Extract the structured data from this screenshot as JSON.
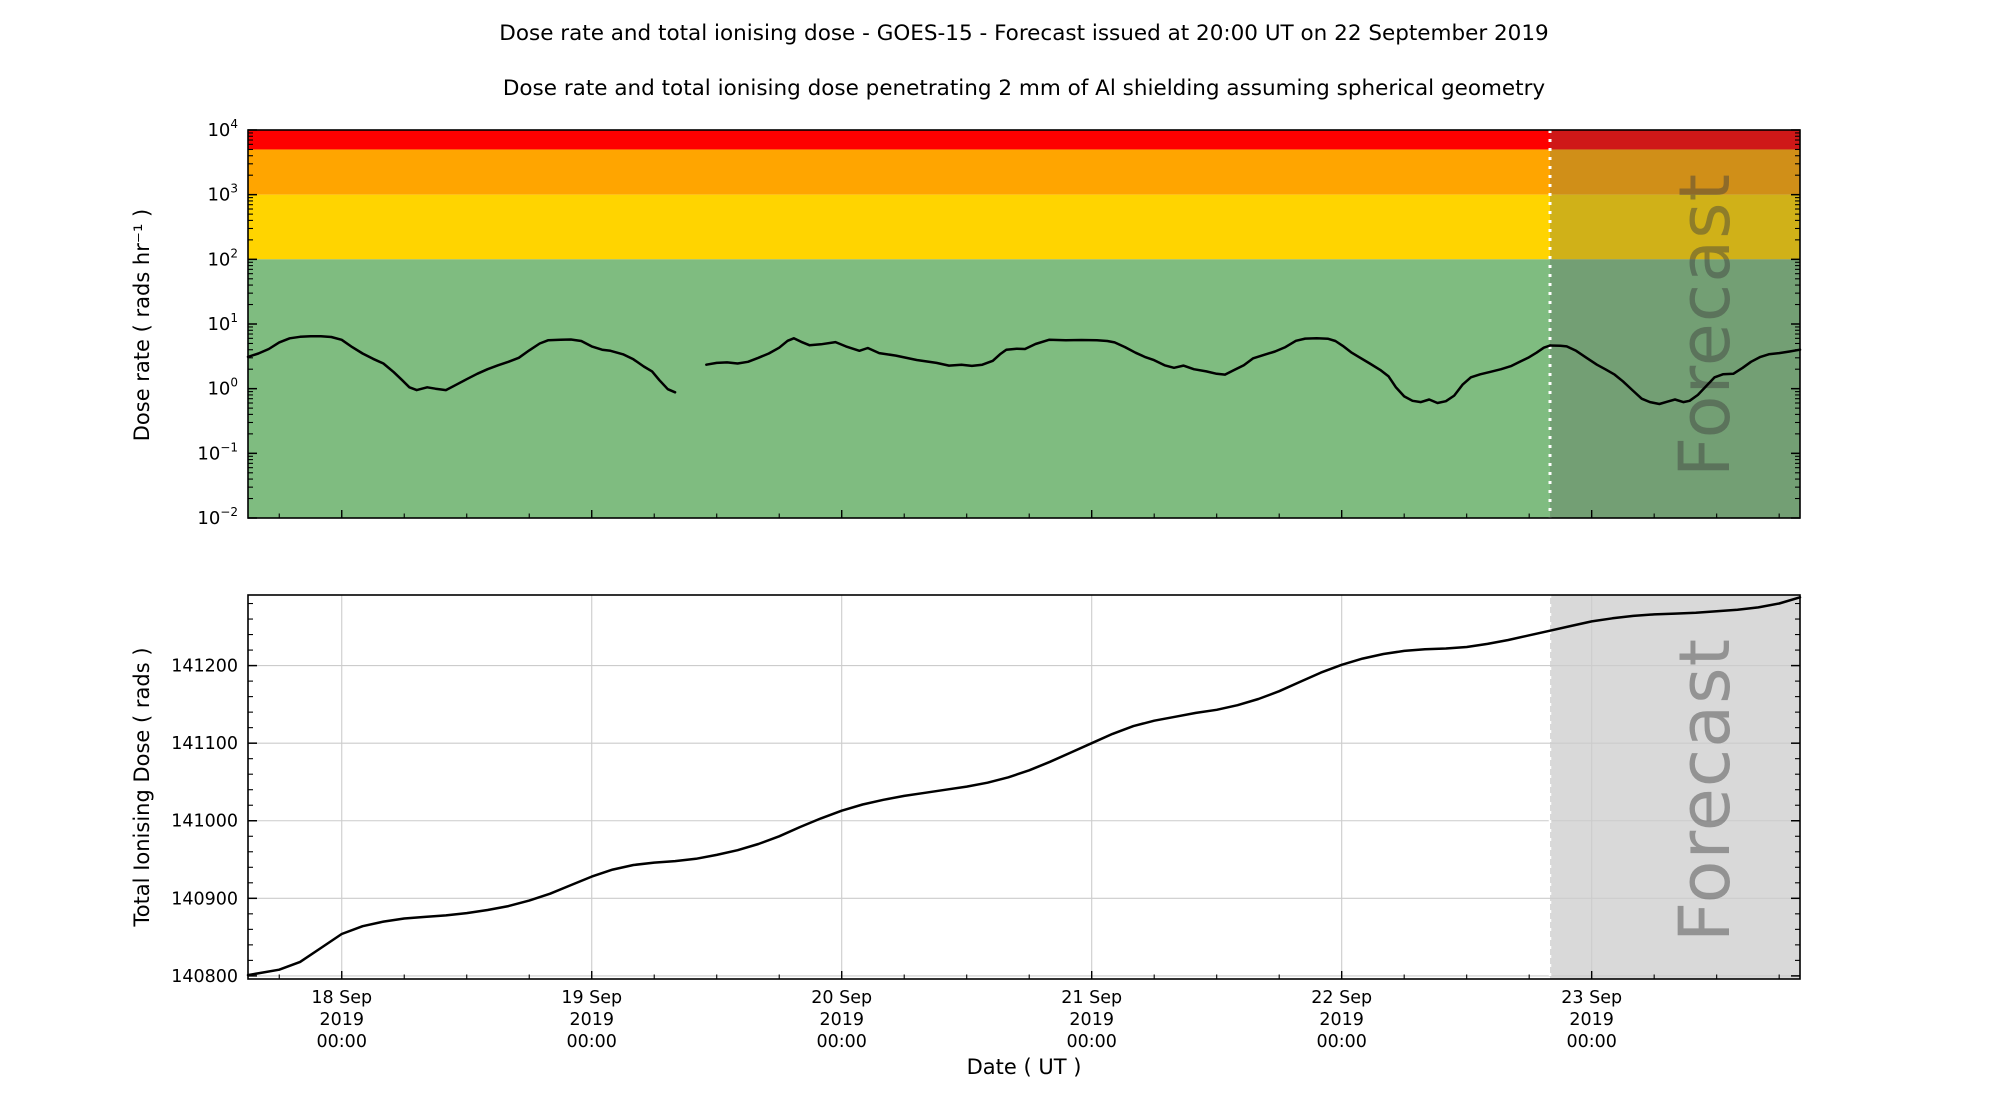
{
  "figure": {
    "title": "Dose rate and total ionising dose - GOES-15 - Forecast issued at 20:00 UT on 22 September 2019",
    "subtitle": "Dose rate and total ionising dose penetrating 2 mm of Al shielding assuming spherical geometry"
  },
  "forecast": {
    "watermark": "Forecast",
    "issued_at": "20:00 UT on 22 September 2019",
    "start_t_hours": 116,
    "overlay_color": "#555555",
    "overlay_alpha": 0.28,
    "bottom_fill": "#d9d9d9",
    "boundary_line_color": "#ffffff"
  },
  "x_axis": {
    "label": "Date ( UT )",
    "t_units": "hours since 18 Sep 2019 00:00 UT",
    "range_t_hours": [
      -9,
      140
    ],
    "start": "17 Sep 2019 ~15:00 UT",
    "end": "23 Sep 2019 ~20:00 UT",
    "minor_tick_step_hours": 6,
    "ticks": [
      {
        "t": 0,
        "lines": [
          "18 Sep",
          "2019",
          "00:00"
        ]
      },
      {
        "t": 24,
        "lines": [
          "19 Sep",
          "2019",
          "00:00"
        ]
      },
      {
        "t": 48,
        "lines": [
          "20 Sep",
          "2019",
          "00:00"
        ]
      },
      {
        "t": 72,
        "lines": [
          "21 Sep",
          "2019",
          "00:00"
        ]
      },
      {
        "t": 96,
        "lines": [
          "22 Sep",
          "2019",
          "00:00"
        ]
      },
      {
        "t": 120,
        "lines": [
          "23 Sep",
          "2019",
          "00:00"
        ]
      }
    ]
  },
  "chart_data": [
    {
      "id": "dose_rate",
      "type": "line",
      "ylabel": "Dose rate ( rads hr⁻¹ )",
      "yscale": "log",
      "ylim": [
        0.01,
        10000
      ],
      "grid": false,
      "line_color": "#000000",
      "yticks": [
        {
          "value": 10000,
          "exp": "4"
        },
        {
          "value": 1000,
          "exp": "3"
        },
        {
          "value": 100,
          "exp": "2"
        },
        {
          "value": 10,
          "exp": "1"
        },
        {
          "value": 1,
          "exp": "0"
        },
        {
          "value": 0.1,
          "exp": "−1"
        },
        {
          "value": 0.01,
          "exp": "−2"
        }
      ],
      "bands": [
        {
          "name": "red-alert-band",
          "from": 5000,
          "to": 10000,
          "color": "#fe0000"
        },
        {
          "name": "orange-alert-band",
          "from": 1000,
          "to": 5000,
          "color": "#ffa500"
        },
        {
          "name": "yellow-alert-band",
          "from": 100,
          "to": 1000,
          "color": "#ffd400"
        },
        {
          "name": "green-safe-band",
          "from": 0.01,
          "to": 100,
          "color": "#7fbc80"
        }
      ],
      "series": [
        {
          "name": "observed-segment-1",
          "points": [
            [
              -9,
              3.1
            ],
            [
              -8,
              3.5
            ],
            [
              -7,
              4.1
            ],
            [
              -6,
              5.2
            ],
            [
              -5,
              6.0
            ],
            [
              -4,
              6.35
            ],
            [
              -3,
              6.45
            ],
            [
              -2,
              6.45
            ],
            [
              -1,
              6.3
            ],
            [
              0,
              5.7
            ],
            [
              1,
              4.4
            ],
            [
              2,
              3.5
            ],
            [
              3,
              2.9
            ],
            [
              4,
              2.45
            ],
            [
              5,
              1.8
            ],
            [
              5.8,
              1.35
            ],
            [
              6.5,
              1.05
            ],
            [
              7.2,
              0.95
            ],
            [
              8.2,
              1.05
            ],
            [
              9,
              1.0
            ],
            [
              10,
              0.95
            ],
            [
              11,
              1.15
            ],
            [
              12,
              1.4
            ],
            [
              13,
              1.7
            ],
            [
              14,
              2.0
            ],
            [
              15,
              2.3
            ],
            [
              16,
              2.6
            ],
            [
              17,
              3.0
            ],
            [
              18,
              3.9
            ],
            [
              19,
              5.0
            ],
            [
              19.8,
              5.6
            ],
            [
              21,
              5.7
            ],
            [
              22,
              5.75
            ],
            [
              23,
              5.45
            ],
            [
              24,
              4.5
            ],
            [
              25,
              4.0
            ],
            [
              25.8,
              3.85
            ],
            [
              27,
              3.4
            ],
            [
              28,
              2.85
            ],
            [
              29,
              2.2
            ],
            [
              29.8,
              1.85
            ],
            [
              30.5,
              1.35
            ],
            [
              31.3,
              0.98
            ],
            [
              32,
              0.88
            ]
          ]
        },
        {
          "name": "observed-segment-2",
          "points": [
            [
              35,
              2.35
            ],
            [
              36,
              2.5
            ],
            [
              37,
              2.55
            ],
            [
              38,
              2.45
            ],
            [
              39,
              2.6
            ],
            [
              40,
              3.0
            ],
            [
              41,
              3.5
            ],
            [
              42,
              4.3
            ],
            [
              42.8,
              5.5
            ],
            [
              43.4,
              6.0
            ],
            [
              44.1,
              5.3
            ],
            [
              44.9,
              4.7
            ],
            [
              46,
              4.85
            ],
            [
              47.4,
              5.25
            ],
            [
              48.4,
              4.5
            ],
            [
              49.7,
              3.85
            ],
            [
              50.5,
              4.25
            ],
            [
              51.6,
              3.55
            ],
            [
              53.2,
              3.25
            ],
            [
              55.2,
              2.78
            ],
            [
              57.1,
              2.5
            ],
            [
              58.3,
              2.27
            ],
            [
              59.5,
              2.35
            ],
            [
              60.5,
              2.25
            ],
            [
              61.5,
              2.35
            ],
            [
              62.5,
              2.7
            ],
            [
              63.2,
              3.4
            ],
            [
              63.8,
              4.0
            ],
            [
              64.8,
              4.15
            ],
            [
              65.6,
              4.1
            ],
            [
              66.6,
              4.9
            ],
            [
              67.9,
              5.7
            ],
            [
              69.5,
              5.6
            ],
            [
              71,
              5.65
            ],
            [
              72.5,
              5.6
            ],
            [
              73.5,
              5.45
            ],
            [
              74.2,
              5.2
            ],
            [
              75.2,
              4.4
            ],
            [
              76.2,
              3.6
            ],
            [
              77.1,
              3.1
            ],
            [
              77.9,
              2.8
            ],
            [
              79,
              2.3
            ],
            [
              79.9,
              2.1
            ],
            [
              80.8,
              2.27
            ],
            [
              81.8,
              2.0
            ],
            [
              83,
              1.85
            ],
            [
              84,
              1.7
            ],
            [
              84.8,
              1.65
            ],
            [
              85.7,
              1.95
            ],
            [
              86.6,
              2.3
            ],
            [
              87.5,
              2.95
            ],
            [
              88.6,
              3.35
            ],
            [
              89.6,
              3.75
            ],
            [
              90.6,
              4.4
            ],
            [
              91.6,
              5.5
            ],
            [
              92.5,
              5.95
            ],
            [
              93.6,
              6.0
            ],
            [
              94.7,
              5.9
            ],
            [
              95.4,
              5.45
            ],
            [
              96.1,
              4.6
            ],
            [
              96.9,
              3.65
            ],
            [
              97.7,
              3.05
            ],
            [
              98.7,
              2.45
            ],
            [
              99.7,
              1.95
            ],
            [
              100.5,
              1.55
            ],
            [
              101.2,
              1.05
            ],
            [
              102,
              0.76
            ],
            [
              102.8,
              0.65
            ],
            [
              103.6,
              0.62
            ],
            [
              104.4,
              0.68
            ],
            [
              105.2,
              0.6
            ],
            [
              106,
              0.64
            ],
            [
              106.8,
              0.78
            ],
            [
              107.6,
              1.15
            ],
            [
              108.4,
              1.5
            ],
            [
              109.3,
              1.67
            ],
            [
              110.3,
              1.82
            ],
            [
              111.3,
              2.0
            ],
            [
              112.3,
              2.25
            ],
            [
              113.1,
              2.6
            ],
            [
              113.9,
              3.0
            ],
            [
              114.7,
              3.6
            ],
            [
              115.4,
              4.3
            ],
            [
              116,
              4.65
            ]
          ]
        },
        {
          "name": "forecast-segment",
          "points": [
            [
              116,
              4.65
            ],
            [
              117,
              4.6
            ],
            [
              117.6,
              4.5
            ],
            [
              118.5,
              3.85
            ],
            [
              119.5,
              3.0
            ],
            [
              120.5,
              2.35
            ],
            [
              121.3,
              2.0
            ],
            [
              122.2,
              1.65
            ],
            [
              123,
              1.3
            ],
            [
              124,
              0.92
            ],
            [
              124.8,
              0.7
            ],
            [
              125.6,
              0.62
            ],
            [
              126.5,
              0.58
            ],
            [
              127.3,
              0.63
            ],
            [
              128,
              0.68
            ],
            [
              128.8,
              0.62
            ],
            [
              129.4,
              0.65
            ],
            [
              130.2,
              0.8
            ],
            [
              131,
              1.1
            ],
            [
              131.8,
              1.5
            ],
            [
              132.6,
              1.67
            ],
            [
              133.6,
              1.7
            ],
            [
              134.5,
              2.1
            ],
            [
              135.3,
              2.6
            ],
            [
              136.2,
              3.1
            ],
            [
              137,
              3.4
            ],
            [
              138,
              3.55
            ],
            [
              139,
              3.75
            ],
            [
              140,
              4.0
            ]
          ]
        }
      ]
    },
    {
      "id": "total_dose",
      "type": "line",
      "ylabel": "Total Ionising Dose ( rads )",
      "yscale": "linear",
      "ylim": [
        140796,
        141291
      ],
      "grid": true,
      "grid_color": "#cccccc",
      "line_color": "#000000",
      "yticks": [
        140800,
        140900,
        141000,
        141100,
        141200
      ],
      "minor_ytick_step": 20,
      "series": [
        {
          "name": "total-dose",
          "points": [
            [
              -9,
              140801
            ],
            [
              -6,
              140808
            ],
            [
              -4,
              140818
            ],
            [
              -2,
              140836
            ],
            [
              0,
              140854
            ],
            [
              2,
              140864
            ],
            [
              4,
              140870
            ],
            [
              6,
              140874
            ],
            [
              8,
              140876
            ],
            [
              10,
              140878
            ],
            [
              12,
              140881
            ],
            [
              14,
              140885
            ],
            [
              16,
              140890
            ],
            [
              18,
              140897
            ],
            [
              20,
              140906
            ],
            [
              22,
              140917
            ],
            [
              24,
              140928
            ],
            [
              26,
              140937
            ],
            [
              28,
              140943
            ],
            [
              30,
              140946
            ],
            [
              32,
              140948
            ],
            [
              34,
              140951
            ],
            [
              36,
              140956
            ],
            [
              38,
              140962
            ],
            [
              40,
              140970
            ],
            [
              42,
              140980
            ],
            [
              44,
              140992
            ],
            [
              46,
              141003
            ],
            [
              48,
              141013
            ],
            [
              50,
              141021
            ],
            [
              52,
              141027
            ],
            [
              54,
              141032
            ],
            [
              56,
              141036
            ],
            [
              58,
              141040
            ],
            [
              60,
              141044
            ],
            [
              62,
              141049
            ],
            [
              64,
              141056
            ],
            [
              66,
              141065
            ],
            [
              68,
              141076
            ],
            [
              70,
              141088
            ],
            [
              72,
              141100
            ],
            [
              74,
              141112
            ],
            [
              76,
              141122
            ],
            [
              78,
              141129
            ],
            [
              80,
              141134
            ],
            [
              82,
              141139
            ],
            [
              84,
              141143
            ],
            [
              86,
              141149
            ],
            [
              88,
              141157
            ],
            [
              90,
              141167
            ],
            [
              92,
              141179
            ],
            [
              94,
              141191
            ],
            [
              96,
              141201
            ],
            [
              98,
              141209
            ],
            [
              100,
              141215
            ],
            [
              102,
              141219
            ],
            [
              104,
              141221
            ],
            [
              106,
              141222
            ],
            [
              108,
              141224
            ],
            [
              110,
              141228
            ],
            [
              112,
              141233
            ],
            [
              114,
              141239
            ],
            [
              116,
              141245
            ],
            [
              118,
              141251
            ],
            [
              120,
              141257
            ],
            [
              122,
              141261
            ],
            [
              124,
              141264
            ],
            [
              126,
              141266
            ],
            [
              128,
              141267
            ],
            [
              130,
              141268
            ],
            [
              132,
              141270
            ],
            [
              134,
              141272
            ],
            [
              136,
              141275
            ],
            [
              138,
              141280
            ],
            [
              140,
              141288
            ]
          ]
        }
      ]
    }
  ]
}
